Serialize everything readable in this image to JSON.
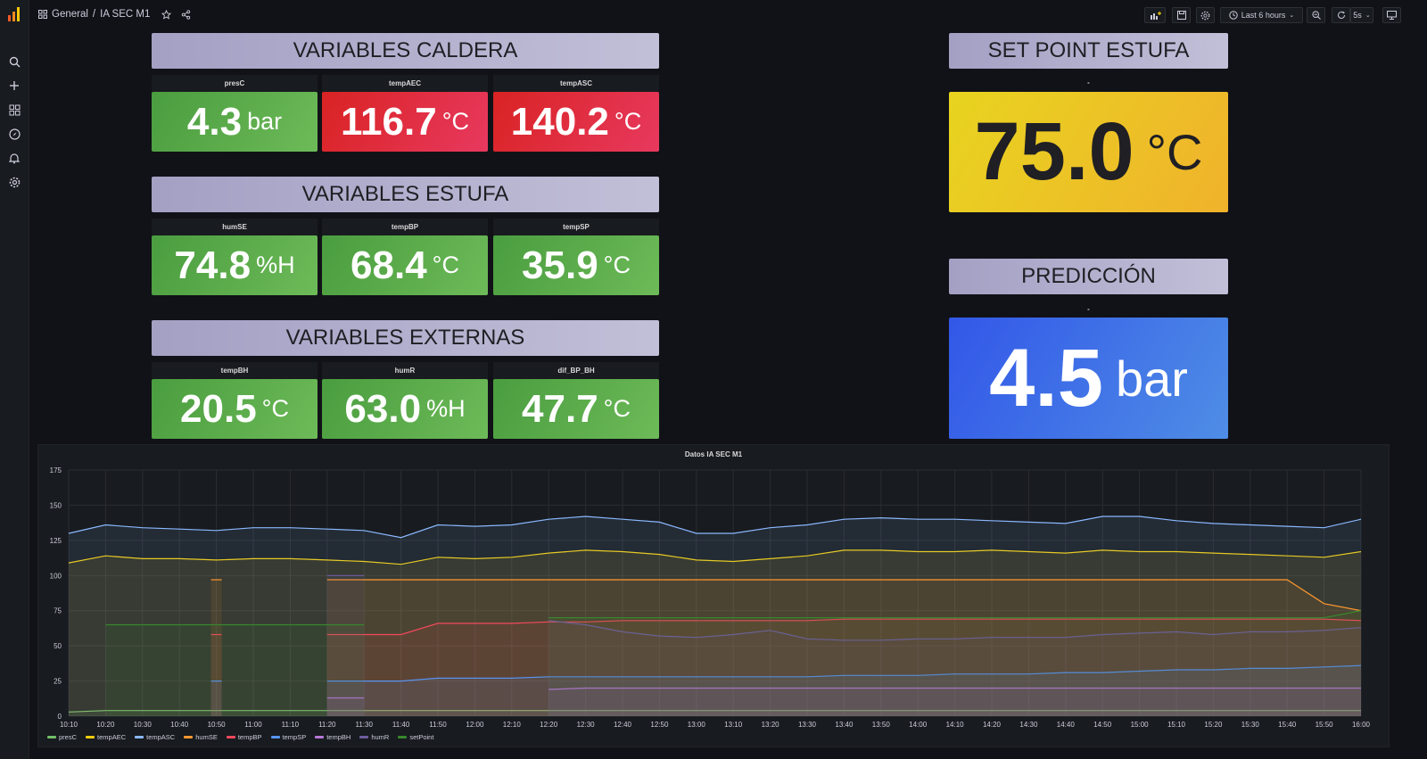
{
  "breadcrumb": {
    "folder": "General",
    "separator": "/",
    "dashboard": "IA SEC M1"
  },
  "toolbar": {
    "time_range": "Last 6 hours",
    "refresh_interval": "5s"
  },
  "sections": {
    "caldera": "VARIABLES CALDERA",
    "estufa": "VARIABLES ESTUFA",
    "externas": "VARIABLES EXTERNAS",
    "setpoint": "SET POINT ESTUFA",
    "prediccion": "PREDICCIÓN"
  },
  "stats": {
    "presC": {
      "title": "presC",
      "value": "4.3",
      "unit": "bar"
    },
    "tempAEC": {
      "title": "tempAEC",
      "value": "116.7",
      "unit": "°C"
    },
    "tempASC": {
      "title": "tempASC",
      "value": "140.2",
      "unit": "°C"
    },
    "humSE": {
      "title": "humSE",
      "value": "74.8",
      "unit": "%H"
    },
    "tempBP": {
      "title": "tempBP",
      "value": "68.4",
      "unit": "°C"
    },
    "tempSP": {
      "title": "tempSP",
      "value": "35.9",
      "unit": "°C"
    },
    "tempBH": {
      "title": "tempBH",
      "value": "20.5",
      "unit": "°C"
    },
    "humR": {
      "title": "humR",
      "value": "63.0",
      "unit": "%H"
    },
    "dif_BP_BH": {
      "title": "dif_BP_BH",
      "value": "47.7",
      "unit": "°C"
    },
    "setpoint": {
      "title": "-",
      "value": "75.0",
      "unit": "°C"
    },
    "prediccion": {
      "title": "-",
      "value": "4.5",
      "unit": "bar"
    }
  },
  "colors": {
    "green": "#56a64b",
    "red": "#e02f44",
    "yellow": "#fade2a",
    "blue": "#3274d9",
    "header": "#b8b5d0"
  },
  "chart_data": {
    "type": "line",
    "title": "Datos IA SEC M1",
    "x": [
      "10:10",
      "10:20",
      "10:30",
      "10:40",
      "10:50",
      "11:00",
      "11:10",
      "11:20",
      "11:30",
      "11:40",
      "11:50",
      "12:00",
      "12:10",
      "12:20",
      "12:30",
      "12:40",
      "12:50",
      "13:00",
      "13:10",
      "13:20",
      "13:30",
      "13:40",
      "13:50",
      "14:00",
      "14:10",
      "14:20",
      "14:30",
      "14:40",
      "14:50",
      "15:00",
      "15:10",
      "15:20",
      "15:30",
      "15:40",
      "15:50",
      "16:00"
    ],
    "ylim": [
      0,
      175
    ],
    "yticks": [
      0,
      25,
      50,
      75,
      100,
      125,
      150,
      175
    ],
    "grid": true,
    "legend_position": "bottom-left",
    "series": [
      {
        "name": "presC",
        "color": "#73bf69",
        "values": [
          3,
          4,
          4,
          4,
          4,
          4,
          4,
          4,
          4,
          4,
          4,
          4,
          4,
          4,
          4,
          4,
          4,
          4,
          4,
          4,
          4,
          4,
          4,
          4,
          4,
          4,
          4,
          4,
          4,
          4,
          4,
          4,
          4,
          4,
          4,
          4
        ]
      },
      {
        "name": "tempAEC",
        "color": "#f2cc0c",
        "values": [
          109,
          114,
          112,
          112,
          111,
          112,
          112,
          111,
          110,
          108,
          113,
          112,
          113,
          116,
          118,
          117,
          115,
          111,
          110,
          112,
          114,
          118,
          118,
          117,
          117,
          118,
          117,
          116,
          118,
          117,
          117,
          116,
          115,
          114,
          113,
          117
        ]
      },
      {
        "name": "tempASC",
        "color": "#8ab8ff",
        "values": [
          130,
          136,
          134,
          133,
          132,
          134,
          134,
          133,
          132,
          127,
          136,
          135,
          136,
          140,
          142,
          140,
          138,
          130,
          130,
          134,
          136,
          140,
          141,
          140,
          140,
          139,
          138,
          137,
          142,
          142,
          139,
          137,
          136,
          135,
          134,
          140
        ]
      },
      {
        "name": "humSE",
        "color": "#ff9830",
        "values": [
          null,
          null,
          null,
          null,
          97,
          null,
          null,
          97,
          97,
          97,
          97,
          97,
          97,
          97,
          97,
          97,
          97,
          97,
          97,
          97,
          97,
          97,
          97,
          97,
          97,
          97,
          97,
          97,
          97,
          97,
          97,
          97,
          97,
          97,
          80,
          75
        ]
      },
      {
        "name": "tempBP",
        "color": "#f2495c",
        "values": [
          null,
          null,
          null,
          null,
          58,
          null,
          null,
          58,
          58,
          58,
          66,
          66,
          66,
          67,
          67,
          68,
          68,
          68,
          68,
          68,
          68,
          69,
          69,
          69,
          69,
          69,
          69,
          69,
          69,
          69,
          69,
          69,
          69,
          69,
          69,
          68
        ]
      },
      {
        "name": "tempSP",
        "color": "#5794f2",
        "values": [
          null,
          null,
          null,
          null,
          25,
          null,
          null,
          25,
          25,
          25,
          27,
          27,
          27,
          28,
          28,
          28,
          28,
          28,
          28,
          28,
          28,
          29,
          29,
          29,
          30,
          30,
          30,
          31,
          31,
          32,
          33,
          33,
          34,
          34,
          35,
          36
        ]
      },
      {
        "name": "tempBH",
        "color": "#b877d9",
        "values": [
          null,
          null,
          null,
          null,
          null,
          null,
          null,
          13,
          13,
          null,
          null,
          null,
          null,
          19,
          20,
          20,
          20,
          20,
          20,
          20,
          20,
          20,
          20,
          20,
          20,
          20,
          20,
          20,
          20,
          20,
          20,
          20,
          20,
          20,
          20,
          20
        ]
      },
      {
        "name": "humR",
        "color": "#705da0",
        "values": [
          null,
          null,
          null,
          null,
          null,
          null,
          null,
          100,
          100,
          null,
          null,
          null,
          null,
          68,
          65,
          60,
          57,
          56,
          58,
          61,
          55,
          54,
          54,
          55,
          55,
          56,
          56,
          56,
          58,
          59,
          60,
          58,
          60,
          60,
          61,
          63
        ]
      },
      {
        "name": "setPoint",
        "color": "#37872d",
        "values": [
          null,
          65,
          65,
          65,
          65,
          65,
          65,
          65,
          65,
          null,
          null,
          null,
          null,
          70,
          70,
          70,
          70,
          70,
          70,
          70,
          70,
          70,
          70,
          70,
          70,
          70,
          70,
          70,
          70,
          70,
          70,
          70,
          70,
          70,
          70,
          75
        ]
      }
    ]
  }
}
